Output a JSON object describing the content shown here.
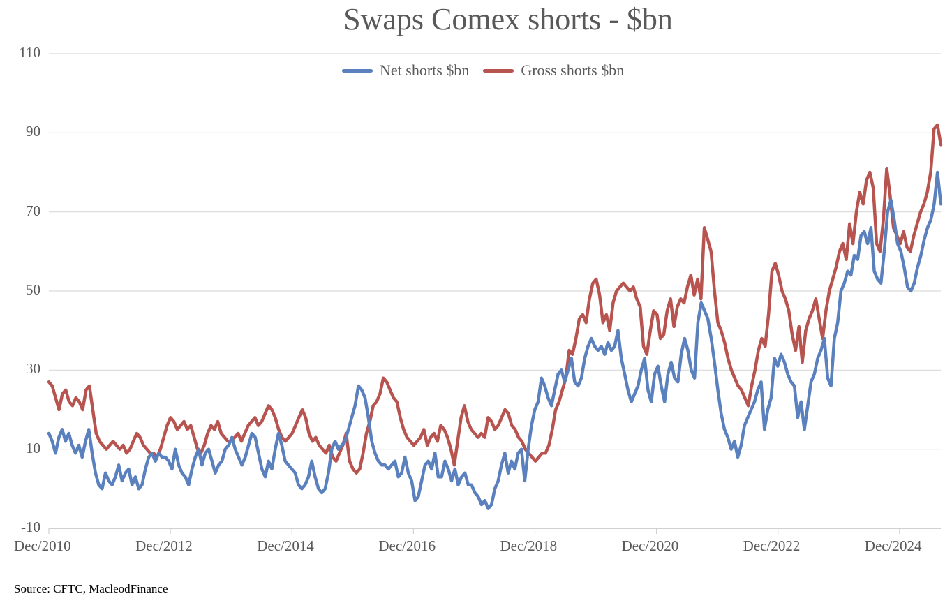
{
  "chart_data": {
    "type": "line",
    "title": "Swaps Comex shorts - $bn",
    "xlabel": "",
    "ylabel": "",
    "ylim": [
      -10,
      110
    ],
    "yticks": [
      "110",
      "90",
      "70",
      "50",
      "30",
      "10",
      "-10"
    ],
    "ytick_values": [
      110,
      90,
      70,
      50,
      30,
      10,
      -10
    ],
    "xticks": [
      "Dec/2010",
      "Dec/2012",
      "Dec/2014",
      "Dec/2016",
      "Dec/2018",
      "Dec/2020",
      "Dec/2022",
      "Dec/2024"
    ],
    "xtick_years": [
      2010.92,
      2012.92,
      2014.92,
      2016.92,
      2018.92,
      2020.92,
      2022.92,
      2024.92
    ],
    "xlim": [
      2010.92,
      2025.6
    ],
    "grid": "horizontal",
    "legend_position": "top-center",
    "x_start": 2010.92,
    "x_step_years": 0.0833,
    "series": [
      {
        "name": "Net shorts $bn",
        "color": "#5B80BE",
        "values": [
          14,
          12,
          9,
          13,
          15,
          12,
          14,
          11,
          9,
          11,
          8,
          12,
          15,
          9,
          4,
          1,
          0,
          4,
          2,
          1,
          3,
          6,
          2,
          4,
          5,
          1,
          3,
          0,
          1,
          5,
          8,
          9,
          7,
          9,
          8,
          8,
          7,
          5,
          10,
          6,
          4,
          3,
          1,
          5,
          8,
          10,
          6,
          9,
          10,
          7,
          4,
          6,
          7,
          10,
          11,
          13,
          10,
          8,
          6,
          8,
          11,
          14,
          13,
          9,
          5,
          3,
          7,
          5,
          10,
          14,
          11,
          7,
          6,
          5,
          4,
          1,
          0,
          1,
          3,
          7,
          3,
          0,
          -1,
          0,
          4,
          10,
          12,
          10,
          11,
          12,
          15,
          18,
          21,
          26,
          25,
          23,
          18,
          12,
          9,
          7,
          6,
          6,
          5,
          6,
          7,
          3,
          4,
          8,
          4,
          2,
          -3,
          -2,
          2,
          6,
          7,
          5,
          9,
          3,
          3,
          7,
          5,
          2,
          5,
          1,
          3,
          4,
          1,
          1,
          -1,
          -2,
          -4,
          -3,
          -5,
          -4,
          0,
          2,
          6,
          9,
          4,
          7,
          5,
          9,
          10,
          2,
          10,
          16,
          20,
          22,
          28,
          26,
          23,
          21,
          25,
          29,
          30,
          27,
          30,
          33,
          27,
          26,
          28,
          33,
          36,
          38,
          36,
          35,
          36,
          34,
          37,
          35,
          36,
          40,
          33,
          29,
          25,
          22,
          24,
          26,
          30,
          33,
          25,
          22,
          29,
          31,
          26,
          22,
          29,
          32,
          28,
          27,
          34,
          38,
          35,
          30,
          28,
          42,
          47,
          45,
          43,
          38,
          32,
          25,
          19,
          15,
          13,
          10,
          12,
          8,
          11,
          16,
          18,
          20,
          22,
          25,
          27,
          15,
          20,
          23,
          33,
          31,
          34,
          32,
          29,
          27,
          26,
          18,
          22,
          15,
          21,
          27,
          29,
          33,
          35,
          38,
          28,
          26,
          38,
          42,
          50,
          52,
          55,
          54,
          59,
          58,
          64,
          65,
          62,
          66,
          55,
          53,
          52,
          60,
          70,
          73,
          68,
          62,
          60,
          56,
          51,
          50,
          52,
          56,
          59,
          63,
          66,
          68,
          72,
          80,
          72
        ]
      },
      {
        "name": "Gross shorts $bn",
        "color": "#B85450",
        "values": [
          27,
          26,
          23,
          20,
          24,
          25,
          22,
          21,
          23,
          22,
          20,
          25,
          26,
          20,
          14,
          12,
          11,
          10,
          11,
          12,
          11,
          10,
          11,
          9,
          10,
          12,
          14,
          13,
          11,
          10,
          9,
          9,
          8,
          10,
          13,
          16,
          18,
          17,
          15,
          16,
          17,
          15,
          16,
          13,
          10,
          9,
          11,
          14,
          16,
          15,
          17,
          14,
          13,
          12,
          12,
          13,
          14,
          12,
          14,
          16,
          17,
          18,
          16,
          17,
          19,
          21,
          20,
          18,
          15,
          13,
          12,
          13,
          14,
          16,
          18,
          20,
          18,
          14,
          12,
          13,
          11,
          10,
          9,
          11,
          8,
          7,
          9,
          11,
          14,
          7,
          5,
          4,
          5,
          9,
          14,
          17,
          21,
          22,
          24,
          28,
          27,
          25,
          23,
          22,
          18,
          15,
          13,
          12,
          11,
          12,
          13,
          15,
          11,
          13,
          14,
          12,
          16,
          15,
          13,
          10,
          6,
          12,
          18,
          21,
          17,
          15,
          14,
          13,
          14,
          13,
          18,
          17,
          15,
          16,
          18,
          20,
          19,
          16,
          15,
          13,
          12,
          10,
          9,
          8,
          7,
          8,
          9,
          9,
          11,
          15,
          20,
          22,
          25,
          28,
          35,
          34,
          38,
          43,
          44,
          42,
          48,
          52,
          53,
          49,
          42,
          44,
          40,
          47,
          50,
          51,
          52,
          51,
          50,
          51,
          48,
          46,
          36,
          34,
          40,
          45,
          44,
          38,
          39,
          45,
          48,
          41,
          46,
          48,
          47,
          51,
          54,
          49,
          53,
          48,
          66,
          63,
          60,
          50,
          42,
          40,
          37,
          33,
          30,
          28,
          26,
          25,
          23,
          21,
          26,
          30,
          35,
          38,
          36,
          44,
          55,
          57,
          54,
          50,
          48,
          45,
          39,
          35,
          41,
          32,
          40,
          43,
          45,
          48,
          43,
          38,
          45,
          50,
          53,
          56,
          60,
          62,
          58,
          67,
          62,
          70,
          75,
          72,
          78,
          80,
          76,
          62,
          60,
          68,
          81,
          74,
          66,
          64,
          62,
          65,
          61,
          60,
          64,
          67,
          70,
          72,
          75,
          80,
          91,
          92,
          87
        ]
      }
    ]
  },
  "source_note": "Source: CFTC, MacleodFinance"
}
